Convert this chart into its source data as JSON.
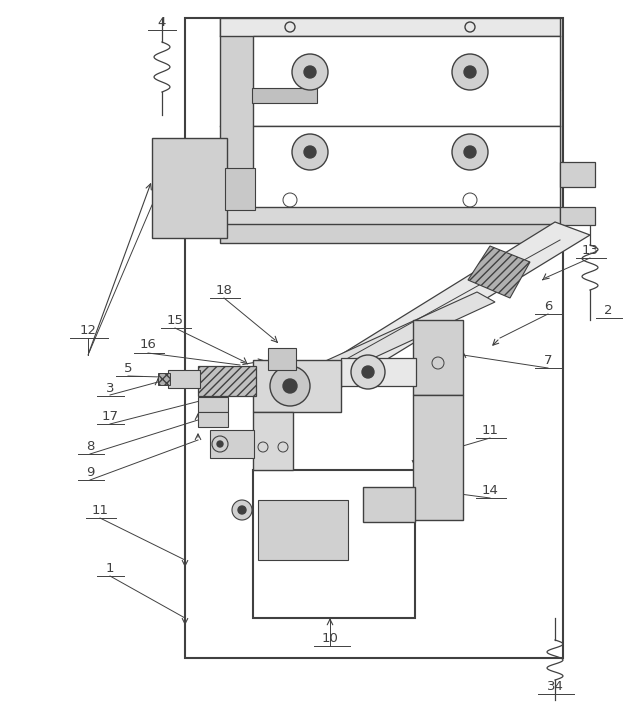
{
  "bg_color": "#ffffff",
  "line_color": "#404040",
  "light_gray": "#d0d0d0",
  "mid_gray": "#b0b0b0",
  "dark_gray": "#888888",
  "fig_width": 6.41,
  "fig_height": 7.02,
  "dpi": 100
}
